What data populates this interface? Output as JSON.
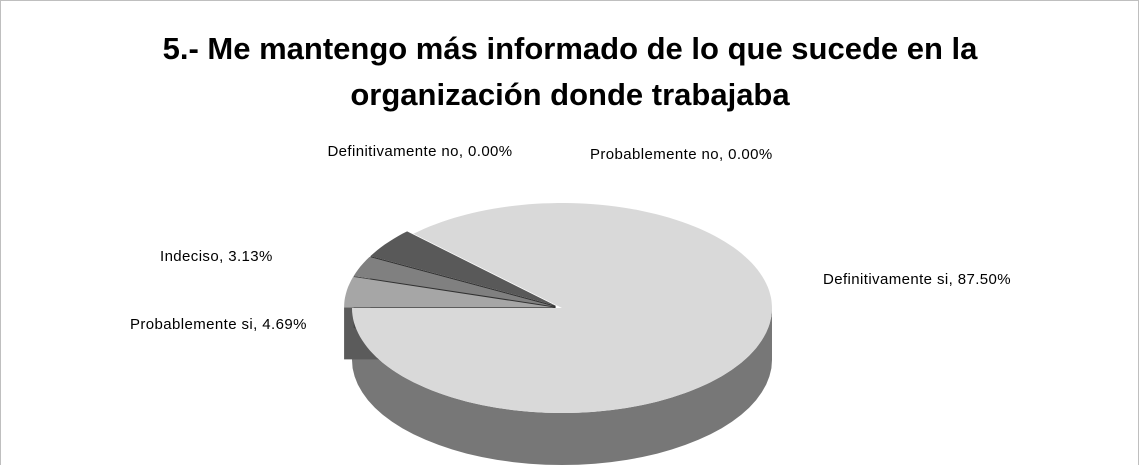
{
  "chart_data": {
    "type": "pie",
    "title": "5.- Me mantengo más informado de lo que sucede en la organización donde trabajaba",
    "values": [
      87.5,
      4.69,
      3.13,
      0,
      0,
      4.68
    ],
    "value_labels": [
      "Definitivamente si, 87.50%",
      "Probablemente si, 4.69%",
      "Indeciso, 3.13%",
      "Probablemente no, 0.00%",
      "Definitivamente no, 0.00%",
      null
    ],
    "colors": [
      "#d9d9d9",
      "#a6a6a6",
      "#808080",
      "#bfbfbf",
      "#9a9a9a",
      "#595959"
    ],
    "three_d": true
  }
}
